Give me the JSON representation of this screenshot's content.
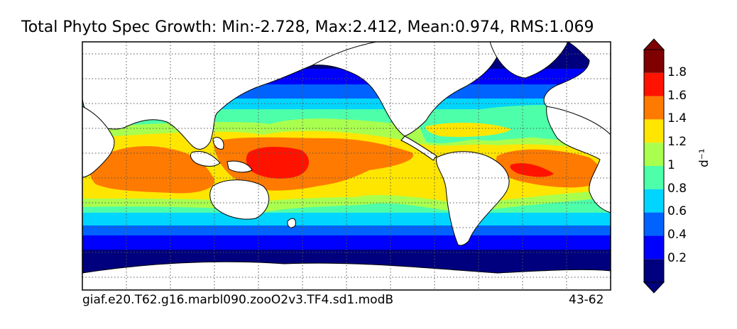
{
  "title": "Total Phyto Spec Growth: Min:-2.728, Max:2.412, Mean:0.974, RMS:1.069",
  "caption_left": "giaf.e20.T62.g16.marbl090.zooO2v3.TF4.sd1.modB",
  "caption_right": "43-62",
  "colorbar": {
    "unit_label": "d⁻¹",
    "tick_labels": [
      "1.8",
      "1.6",
      "1.4",
      "1.2",
      "1",
      "0.8",
      "0.6",
      "0.4",
      "0.2"
    ],
    "colors_bottom_to_top": [
      "#00007f",
      "#0000ff",
      "#0063ff",
      "#00d5ff",
      "#4effa9",
      "#a9ff4e",
      "#ffe600",
      "#ff7a00",
      "#ff1300",
      "#7f0000"
    ],
    "extend": "both"
  },
  "colors": {
    "land": "#ffffff",
    "sea_ice": "#00007f",
    "coast_line": "#000000",
    "grid_line": "#555555"
  },
  "map": {
    "projection": "cylindrical",
    "gridlines": "dotted"
  }
}
